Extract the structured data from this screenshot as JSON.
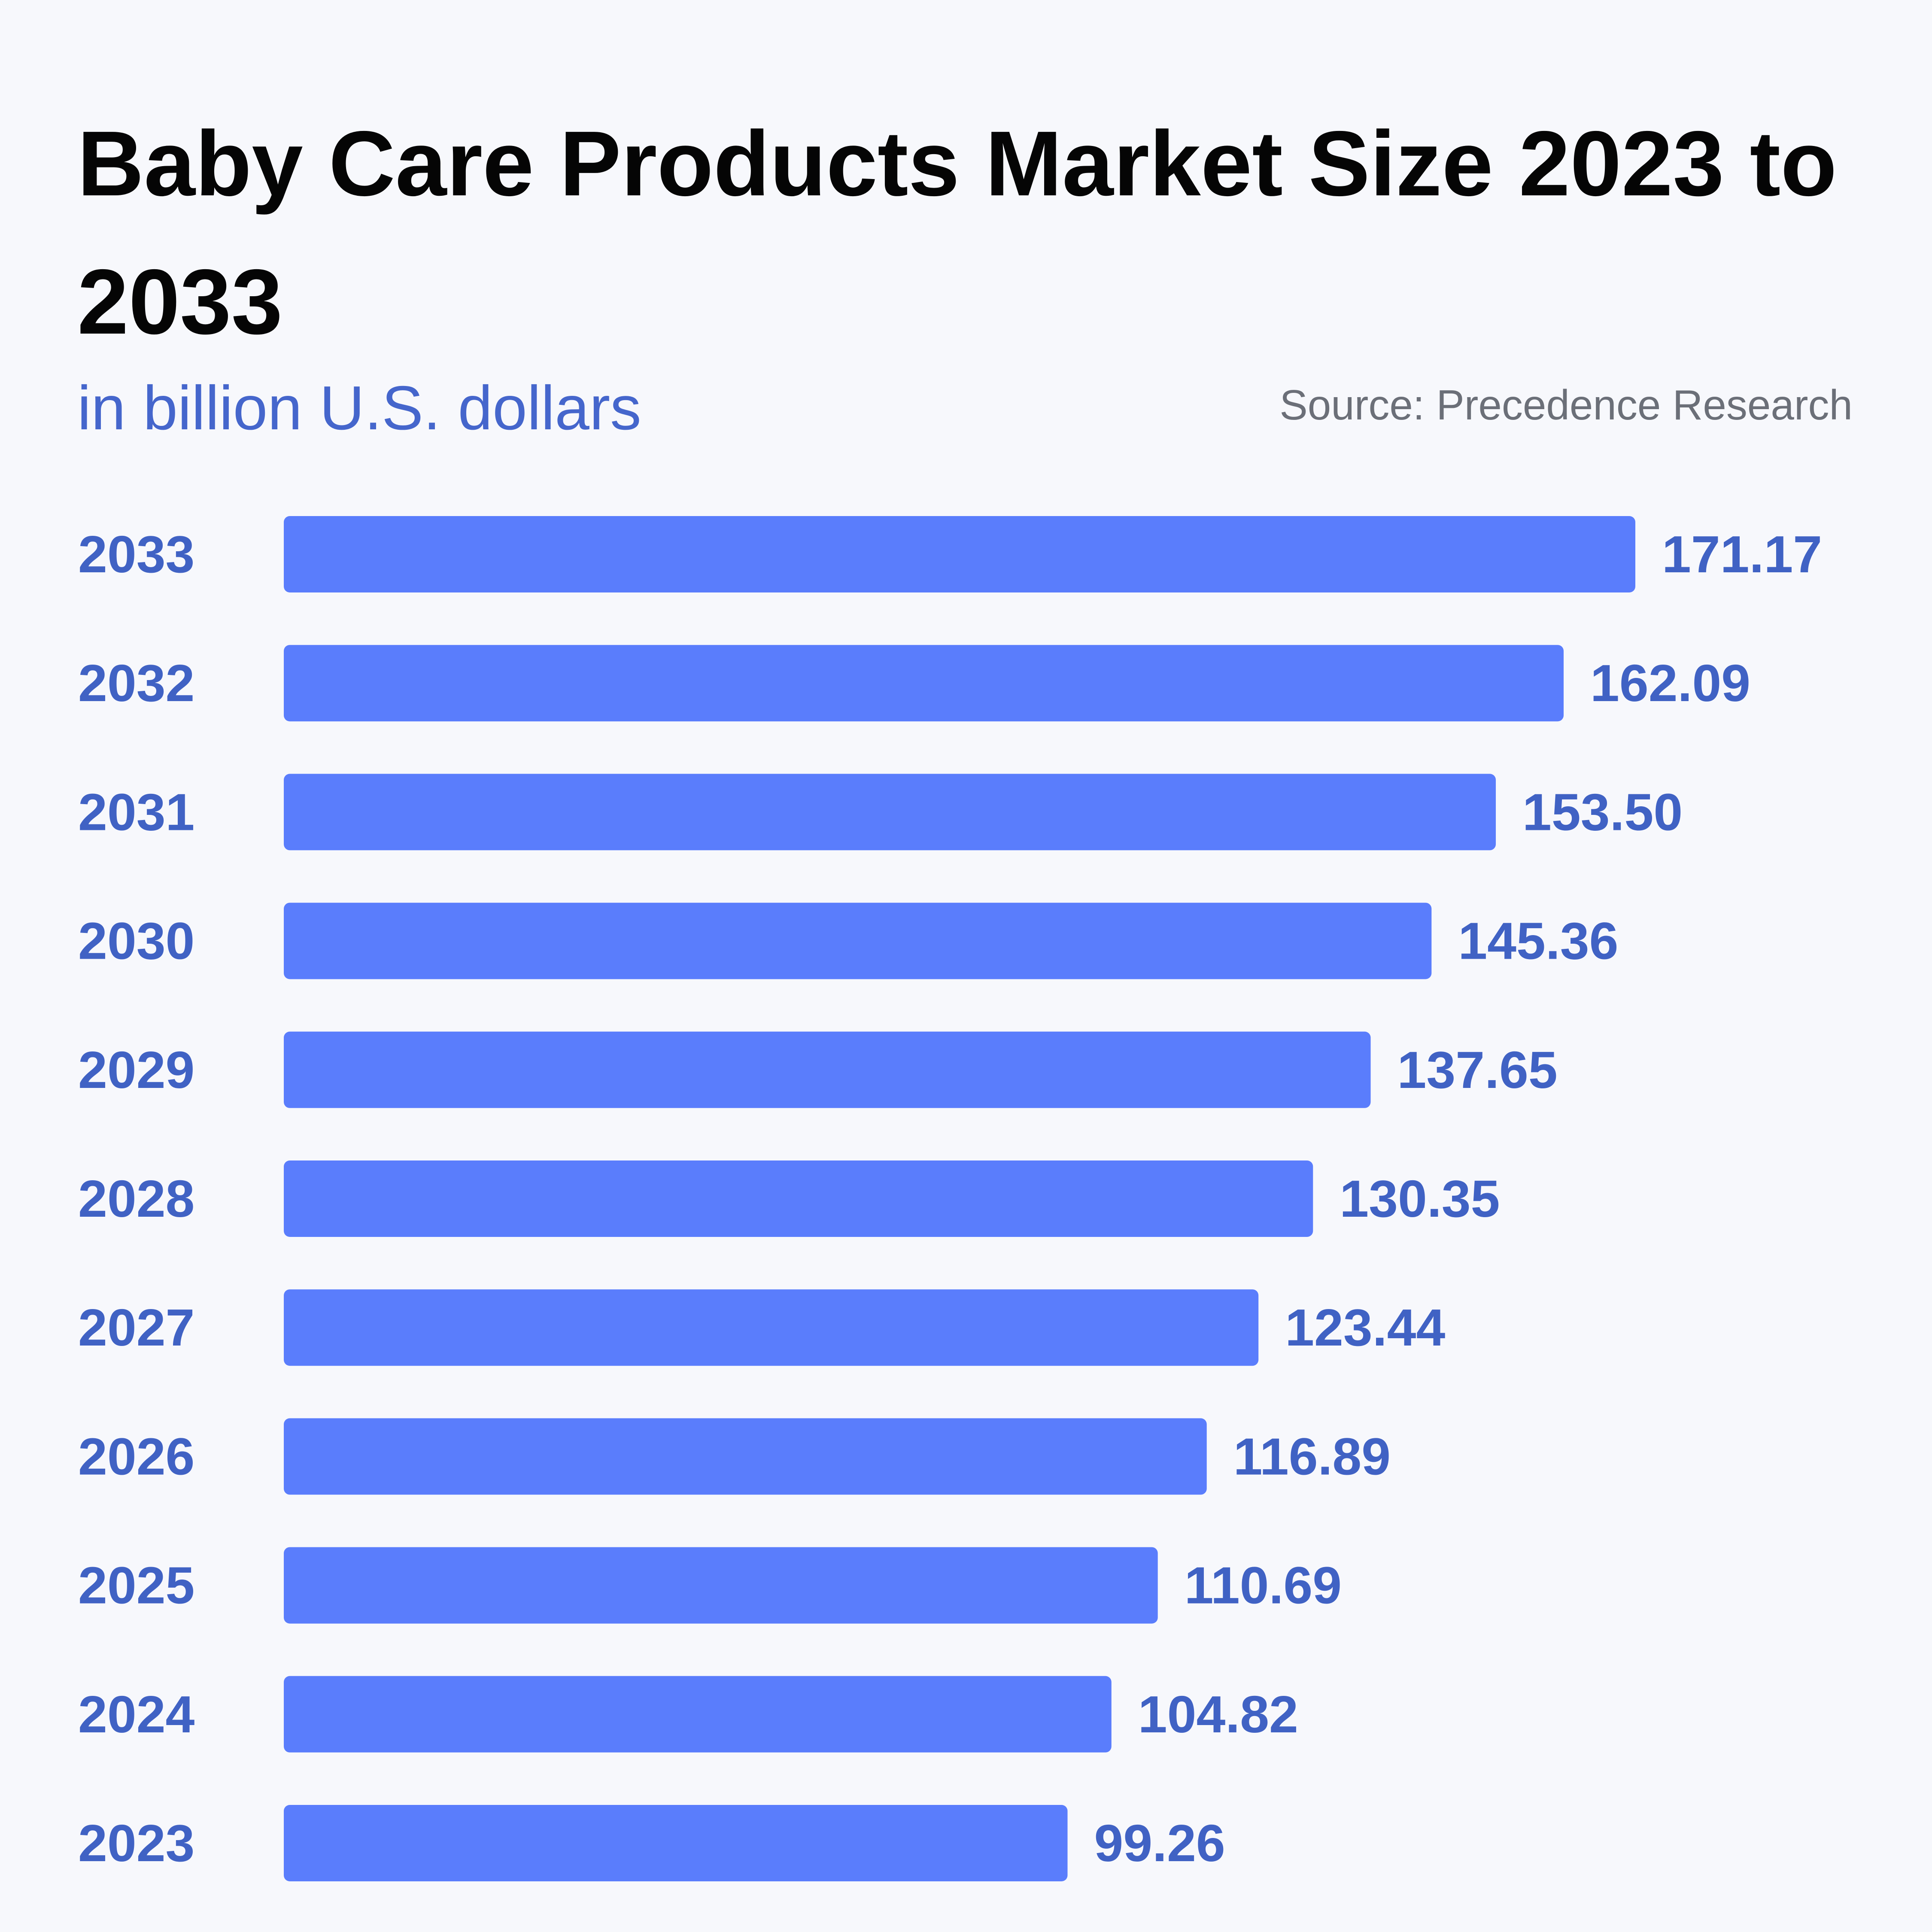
{
  "chart_data": {
    "type": "bar",
    "orientation": "horizontal",
    "title": "Baby Care Products Market Size 2023 to 2033",
    "subtitle": "in billion U.S. dollars",
    "source": "Source: Precedence Research",
    "categories": [
      "2033",
      "2032",
      "2031",
      "2030",
      "2029",
      "2028",
      "2027",
      "2026",
      "2025",
      "2024",
      "2023"
    ],
    "values": [
      171.17,
      162.09,
      153.5,
      145.36,
      137.65,
      130.35,
      123.44,
      116.89,
      110.69,
      104.82,
      99.26
    ],
    "value_labels": [
      "171.17",
      "162.09",
      "153.50",
      "145.36",
      "137.65",
      "130.35",
      "123.44",
      "116.89",
      "110.69",
      "104.82",
      "99.26"
    ],
    "xlim": [
      0,
      171.17
    ],
    "grid": false,
    "legend": "none",
    "colors": {
      "bar": "#5a7dfc",
      "label": "#4062c4",
      "title": "#050505",
      "subtitle": "#4566cc",
      "source": "#6b6f78",
      "background": "#f7f8fc"
    }
  }
}
